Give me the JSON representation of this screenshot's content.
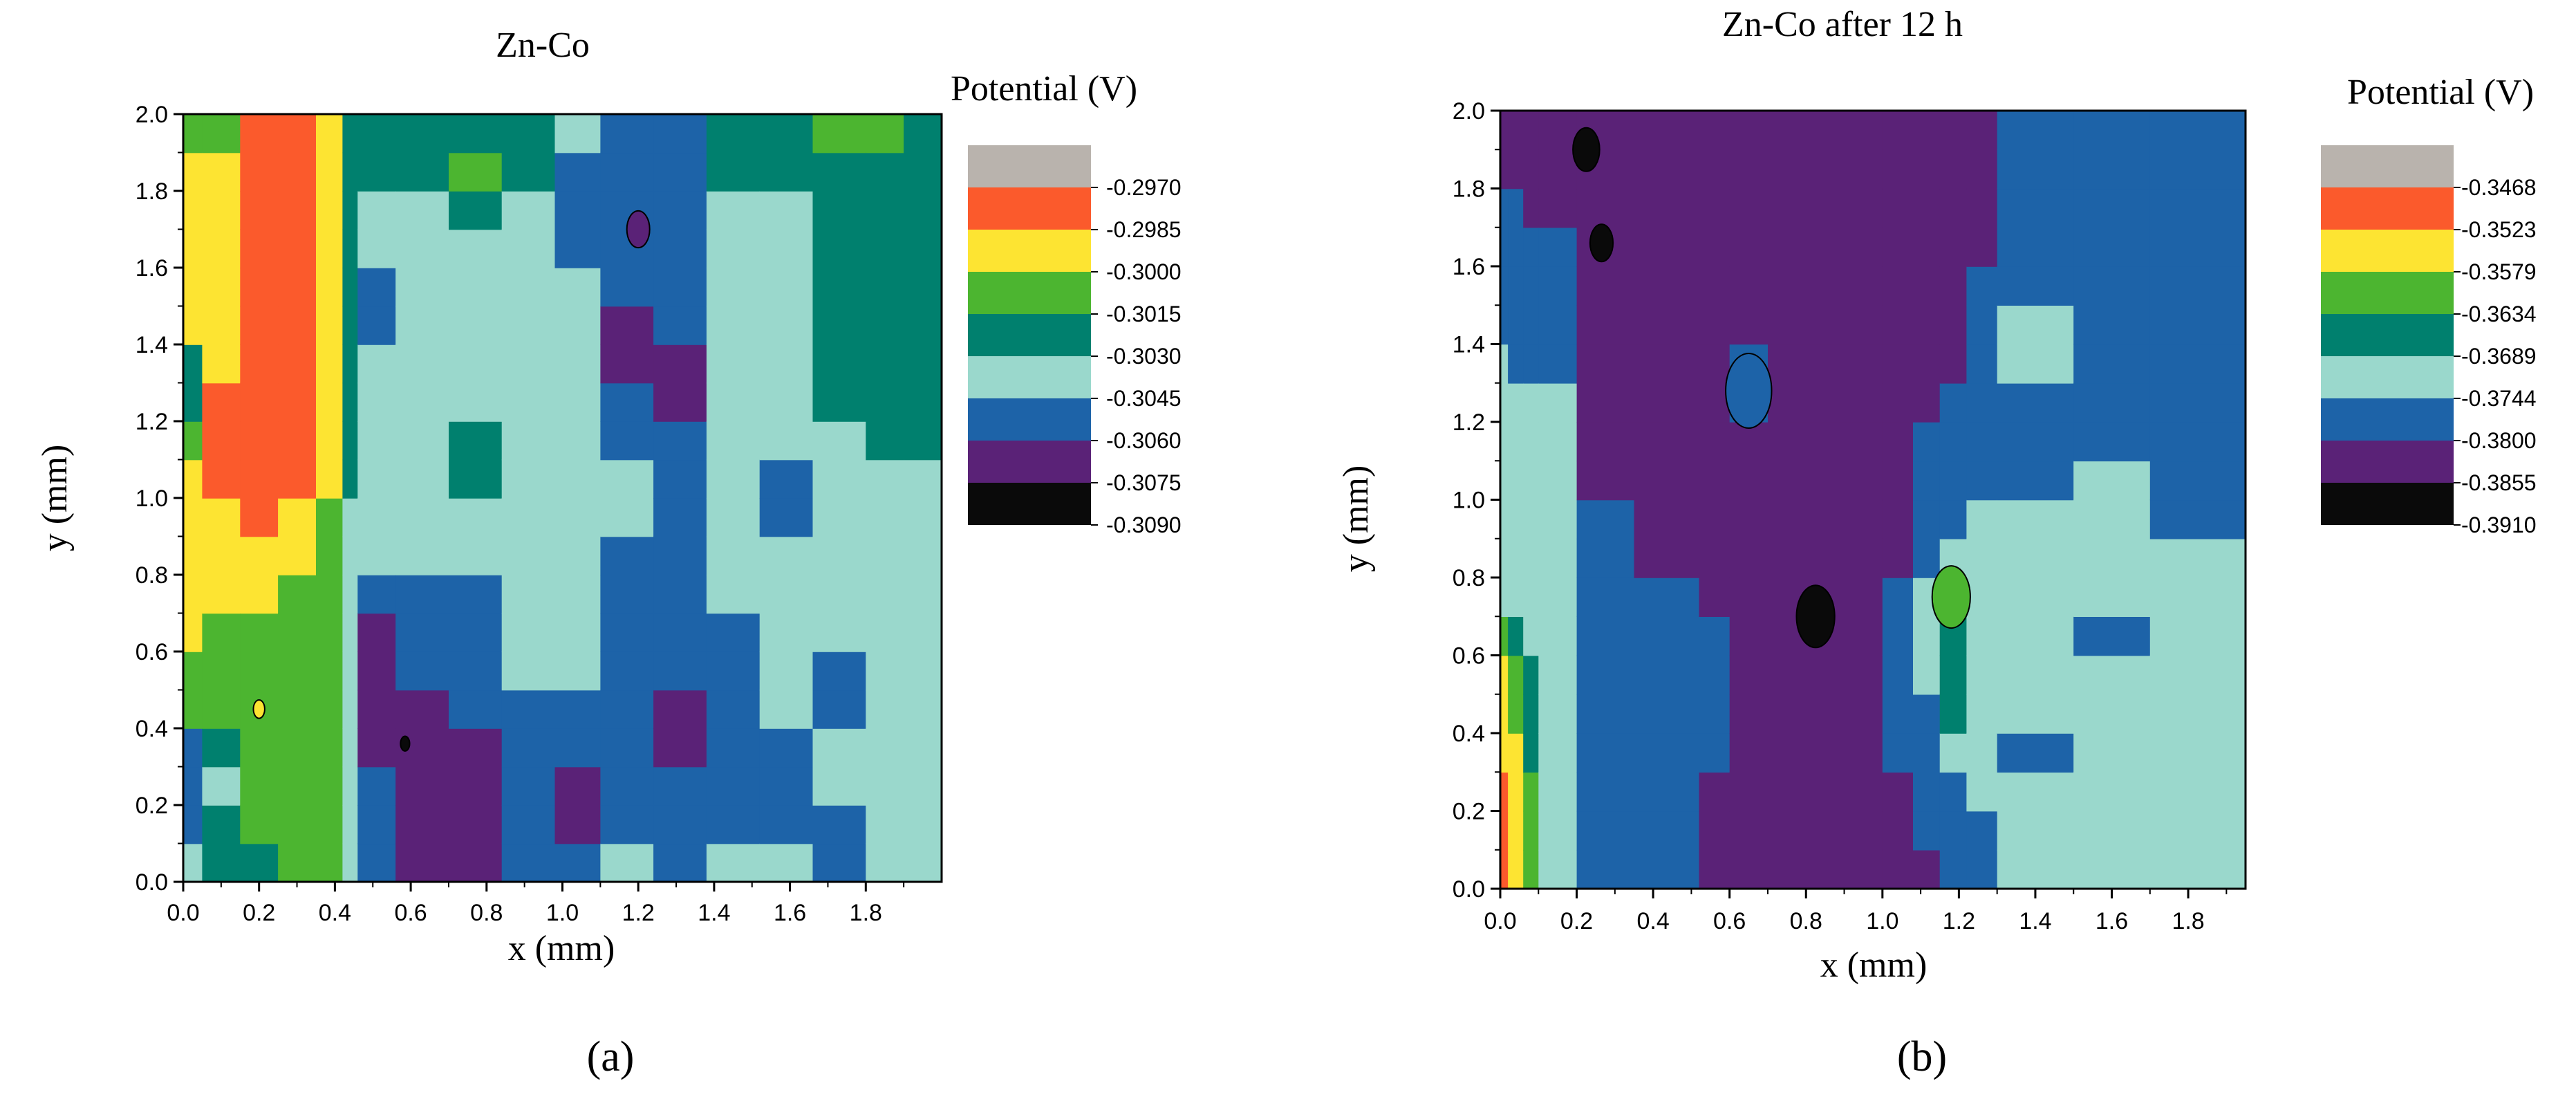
{
  "chart_data": [
    {
      "type": "heatmap",
      "panel_label": "(a)",
      "title": "Zn-Co",
      "xlabel": "x (mm)",
      "ylabel": "y (mm)",
      "xlim": [
        0,
        2.0
      ],
      "ylim": [
        0,
        2.0
      ],
      "x_ticks": [
        "0.0",
        "0.2",
        "0.4",
        "0.6",
        "0.8",
        "1.0",
        "1.2",
        "1.4",
        "1.6",
        "1.8"
      ],
      "y_ticks": [
        "0.0",
        "0.2",
        "0.4",
        "0.6",
        "0.8",
        "1.0",
        "1.2",
        "1.4",
        "1.6",
        "1.8",
        "2.0"
      ],
      "legend_title": "Potential (V)",
      "legend_levels": [
        "-0.2970",
        "-0.2985",
        "-0.3000",
        "-0.3015",
        "-0.3030",
        "-0.3045",
        "-0.3060",
        "-0.3075",
        "-0.3090"
      ],
      "legend_colors": [
        "#b9b3ad",
        "#fb5a2c",
        "#fde432",
        "#4cb530",
        "#00806e",
        "#9ad8cc",
        "#1d63a8",
        "#5a2277",
        "#0a0a0a"
      ],
      "region_strips": [
        {
          "x": [
            0.0,
            0.05
          ],
          "levels": [
            5,
            6,
            6,
            6,
            3,
            3,
            2,
            2,
            2,
            2,
            2,
            3,
            4,
            4,
            2,
            2,
            2,
            2,
            2,
            3
          ]
        },
        {
          "x": [
            0.05,
            0.15
          ],
          "levels": [
            4,
            4,
            5,
            4,
            3,
            3,
            3,
            2,
            2,
            2,
            1,
            1,
            1,
            2,
            2,
            2,
            2,
            2,
            2,
            3
          ]
        },
        {
          "x": [
            0.15,
            0.25
          ],
          "levels": [
            4,
            3,
            3,
            3,
            3,
            3,
            3,
            2,
            2,
            1,
            1,
            1,
            1,
            1,
            1,
            1,
            1,
            1,
            1,
            1
          ]
        },
        {
          "x": [
            0.25,
            0.35
          ],
          "levels": [
            3,
            3,
            3,
            3,
            3,
            3,
            3,
            3,
            2,
            2,
            1,
            1,
            1,
            1,
            1,
            1,
            1,
            1,
            1,
            1
          ]
        },
        {
          "x": [
            0.35,
            0.42
          ],
          "levels": [
            3,
            3,
            3,
            3,
            3,
            3,
            3,
            3,
            3,
            3,
            2,
            2,
            2,
            2,
            2,
            2,
            2,
            2,
            2,
            2
          ]
        },
        {
          "x": [
            0.42,
            0.46
          ],
          "levels": [
            5,
            5,
            5,
            5,
            5,
            5,
            5,
            5,
            5,
            5,
            4,
            4,
            4,
            4,
            4,
            4,
            4,
            4,
            4,
            4
          ]
        },
        {
          "x": [
            0.46,
            0.56
          ],
          "levels": [
            6,
            6,
            6,
            7,
            7,
            7,
            7,
            6,
            5,
            5,
            5,
            5,
            5,
            5,
            6,
            6,
            5,
            5,
            4,
            4
          ]
        },
        {
          "x": [
            0.56,
            0.7
          ],
          "levels": [
            7,
            7,
            7,
            7,
            7,
            6,
            6,
            6,
            5,
            5,
            5,
            5,
            5,
            5,
            5,
            5,
            5,
            5,
            4,
            4
          ]
        },
        {
          "x": [
            0.7,
            0.84
          ],
          "levels": [
            7,
            7,
            7,
            7,
            6,
            6,
            6,
            6,
            5,
            5,
            4,
            4,
            5,
            5,
            5,
            5,
            5,
            4,
            3,
            4
          ]
        },
        {
          "x": [
            0.84,
            0.98
          ],
          "levels": [
            6,
            6,
            6,
            6,
            6,
            5,
            5,
            5,
            5,
            5,
            5,
            5,
            5,
            5,
            5,
            5,
            5,
            5,
            4,
            4
          ]
        },
        {
          "x": [
            0.98,
            1.1
          ],
          "levels": [
            6,
            7,
            7,
            6,
            6,
            5,
            5,
            5,
            5,
            5,
            5,
            5,
            5,
            5,
            5,
            5,
            6,
            6,
            6,
            5
          ]
        },
        {
          "x": [
            1.1,
            1.24
          ],
          "levels": [
            5,
            6,
            6,
            6,
            6,
            6,
            6,
            6,
            6,
            5,
            5,
            6,
            6,
            7,
            7,
            6,
            6,
            6,
            6,
            6
          ]
        },
        {
          "x": [
            1.24,
            1.38
          ],
          "levels": [
            6,
            6,
            6,
            7,
            7,
            6,
            6,
            6,
            6,
            6,
            6,
            6,
            7,
            7,
            6,
            6,
            6,
            6,
            6,
            6
          ]
        },
        {
          "x": [
            1.38,
            1.52
          ],
          "levels": [
            5,
            6,
            6,
            6,
            6,
            6,
            6,
            5,
            5,
            5,
            5,
            5,
            5,
            5,
            5,
            5,
            5,
            5,
            4,
            4
          ]
        },
        {
          "x": [
            1.52,
            1.66
          ],
          "levels": [
            5,
            6,
            6,
            6,
            5,
            5,
            5,
            5,
            5,
            6,
            6,
            5,
            5,
            5,
            5,
            5,
            5,
            5,
            4,
            4
          ]
        },
        {
          "x": [
            1.66,
            1.8
          ],
          "levels": [
            6,
            6,
            5,
            5,
            6,
            6,
            5,
            5,
            5,
            5,
            5,
            5,
            4,
            4,
            4,
            4,
            4,
            4,
            4,
            3
          ]
        },
        {
          "x": [
            1.8,
            1.9
          ],
          "levels": [
            5,
            5,
            5,
            5,
            5,
            5,
            5,
            5,
            5,
            5,
            5,
            4,
            4,
            4,
            4,
            4,
            4,
            4,
            4,
            3
          ]
        },
        {
          "x": [
            1.9,
            2.0
          ],
          "levels": [
            5,
            5,
            5,
            5,
            5,
            5,
            5,
            5,
            5,
            5,
            5,
            4,
            4,
            4,
            4,
            4,
            4,
            4,
            4,
            4
          ]
        }
      ],
      "spots": [
        {
          "x": 0.585,
          "y": 0.36,
          "r": 0.012,
          "level": 8
        },
        {
          "x": 1.2,
          "y": 1.7,
          "r": 0.03,
          "level": 7
        },
        {
          "x": 0.2,
          "y": 0.45,
          "r": 0.015,
          "level": 2
        }
      ]
    },
    {
      "type": "heatmap",
      "panel_label": "(b)",
      "title": "Zn-Co after 12 h",
      "xlabel": "x (mm)",
      "ylabel": "y (mm)",
      "xlim": [
        0,
        1.95
      ],
      "ylim": [
        0,
        2.0
      ],
      "x_ticks": [
        "0.0",
        "0.2",
        "0.4",
        "0.6",
        "0.8",
        "1.0",
        "1.2",
        "1.4",
        "1.6",
        "1.8"
      ],
      "y_ticks": [
        "0.0",
        "0.2",
        "0.4",
        "0.6",
        "0.8",
        "1.0",
        "1.2",
        "1.4",
        "1.6",
        "1.8",
        "2.0"
      ],
      "legend_title": "Potential (V)",
      "legend_levels": [
        "-0.3468",
        "-0.3523",
        "-0.3579",
        "-0.3634",
        "-0.3689",
        "-0.3744",
        "-0.3800",
        "-0.3855",
        "-0.3910"
      ],
      "legend_colors": [
        "#b9b3ad",
        "#fb5a2c",
        "#fde432",
        "#4cb530",
        "#00806e",
        "#9ad8cc",
        "#1d63a8",
        "#5a2277",
        "#0a0a0a"
      ],
      "region_strips": [
        {
          "x": [
            0.0,
            0.02
          ],
          "levels": [
            1,
            1,
            1,
            2,
            2,
            2,
            3,
            5,
            5,
            5,
            5,
            5,
            5,
            5,
            6,
            6,
            6,
            6,
            7,
            7
          ]
        },
        {
          "x": [
            0.02,
            0.06
          ],
          "levels": [
            2,
            2,
            2,
            2,
            3,
            3,
            4,
            5,
            5,
            5,
            5,
            5,
            5,
            6,
            6,
            6,
            6,
            6,
            7,
            7
          ]
        },
        {
          "x": [
            0.06,
            0.1
          ],
          "levels": [
            3,
            3,
            3,
            4,
            4,
            4,
            5,
            5,
            5,
            5,
            5,
            5,
            5,
            6,
            6,
            6,
            6,
            7,
            7,
            7
          ]
        },
        {
          "x": [
            0.1,
            0.2
          ],
          "levels": [
            5,
            5,
            5,
            5,
            5,
            5,
            5,
            5,
            5,
            5,
            5,
            5,
            5,
            6,
            6,
            6,
            6,
            7,
            7,
            7
          ]
        },
        {
          "x": [
            0.2,
            0.35
          ],
          "levels": [
            6,
            6,
            6,
            6,
            6,
            6,
            6,
            6,
            6,
            6,
            7,
            7,
            7,
            7,
            7,
            7,
            7,
            7,
            7,
            7
          ]
        },
        {
          "x": [
            0.35,
            0.52
          ],
          "levels": [
            6,
            6,
            6,
            6,
            6,
            6,
            6,
            6,
            7,
            7,
            7,
            7,
            7,
            7,
            7,
            7,
            7,
            7,
            7,
            7
          ]
        },
        {
          "x": [
            0.52,
            0.6
          ],
          "levels": [
            7,
            7,
            7,
            6,
            6,
            6,
            6,
            7,
            7,
            7,
            7,
            7,
            7,
            7,
            7,
            7,
            7,
            7,
            7,
            7
          ]
        },
        {
          "x": [
            0.6,
            0.7
          ],
          "levels": [
            7,
            7,
            7,
            7,
            7,
            7,
            7,
            7,
            7,
            7,
            7,
            7,
            6,
            6,
            7,
            7,
            7,
            7,
            7,
            7
          ]
        },
        {
          "x": [
            0.7,
            1.0
          ],
          "levels": [
            7,
            7,
            7,
            7,
            7,
            7,
            7,
            7,
            7,
            7,
            7,
            7,
            7,
            7,
            7,
            7,
            7,
            7,
            7,
            7
          ]
        },
        {
          "x": [
            1.0,
            1.08
          ],
          "levels": [
            7,
            7,
            7,
            6,
            6,
            6,
            6,
            6,
            7,
            7,
            7,
            7,
            7,
            7,
            7,
            7,
            7,
            7,
            7,
            7
          ]
        },
        {
          "x": [
            1.08,
            1.15
          ],
          "levels": [
            7,
            6,
            6,
            6,
            6,
            5,
            5,
            5,
            6,
            6,
            6,
            6,
            7,
            7,
            7,
            7,
            7,
            7,
            7,
            7
          ]
        },
        {
          "x": [
            1.15,
            1.22
          ],
          "levels": [
            6,
            6,
            6,
            5,
            4,
            4,
            4,
            5,
            5,
            6,
            6,
            6,
            6,
            7,
            7,
            7,
            7,
            7,
            7,
            7
          ]
        },
        {
          "x": [
            1.22,
            1.3
          ],
          "levels": [
            6,
            6,
            5,
            5,
            5,
            5,
            5,
            5,
            5,
            5,
            6,
            6,
            6,
            6,
            6,
            6,
            7,
            7,
            7,
            7
          ]
        },
        {
          "x": [
            1.3,
            1.5
          ],
          "levels": [
            5,
            5,
            5,
            6,
            5,
            5,
            5,
            5,
            5,
            5,
            6,
            6,
            6,
            5,
            5,
            6,
            6,
            6,
            6,
            6
          ]
        },
        {
          "x": [
            1.5,
            1.7
          ],
          "levels": [
            5,
            5,
            5,
            5,
            5,
            5,
            6,
            5,
            5,
            5,
            5,
            6,
            6,
            6,
            6,
            6,
            6,
            6,
            6,
            6
          ]
        },
        {
          "x": [
            1.7,
            1.95
          ],
          "levels": [
            5,
            5,
            5,
            5,
            5,
            5,
            5,
            5,
            5,
            6,
            6,
            6,
            6,
            6,
            6,
            6,
            6,
            6,
            6,
            6
          ]
        }
      ],
      "spots": [
        {
          "x": 0.225,
          "y": 1.9,
          "r": 0.035,
          "level": 8
        },
        {
          "x": 0.265,
          "y": 1.66,
          "r": 0.03,
          "level": 8
        },
        {
          "x": 0.825,
          "y": 0.7,
          "r": 0.05,
          "level": 8
        },
        {
          "x": 1.18,
          "y": 0.75,
          "r": 0.05,
          "level": 3
        },
        {
          "x": 0.65,
          "y": 1.28,
          "r": 0.06,
          "level": 6
        }
      ]
    }
  ]
}
